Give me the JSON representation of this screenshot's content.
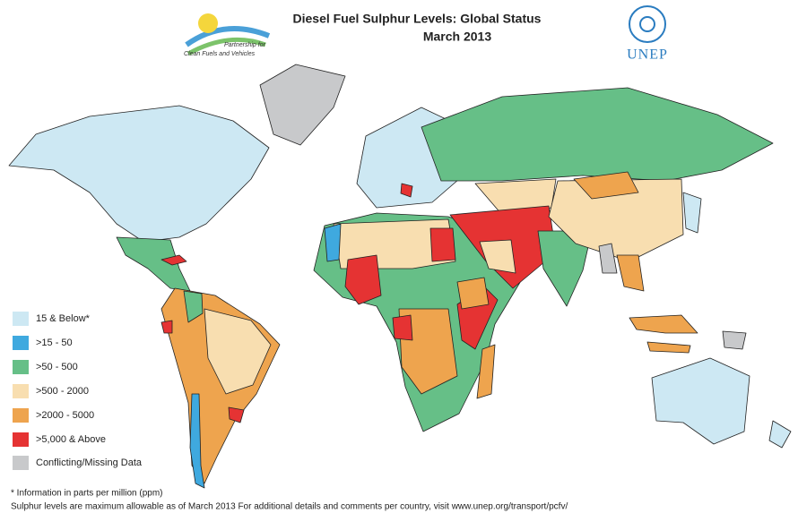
{
  "header": {
    "title": "Diesel Fuel Sulphur Levels: Global Status",
    "subtitle": "March 2013",
    "partner_logo": [
      "Partnership for",
      "Clean Fuels and Vehicles"
    ],
    "agency_logo": "UNEP"
  },
  "legend": [
    {
      "label": "15 & Below*",
      "color": "#cde8f3"
    },
    {
      "label": ">15 - 50",
      "color": "#3fa9df"
    },
    {
      "label": ">50 - 500",
      "color": "#66bf87"
    },
    {
      "label": ">500 - 2000",
      "color": "#f8deb0"
    },
    {
      "label": ">2000 - 5000",
      "color": "#eea44e"
    },
    {
      "label": ">5,000 & Above",
      "color": "#e53333"
    },
    {
      "label": "Conflicting/Missing Data",
      "color": "#c8c9cb"
    }
  ],
  "footnotes": [
    "* Information in parts per million (ppm)",
    "Sulphur levels are maximum allowable as of  March 2013  For additional details and comments per country, visit www.unep.org/transport/pcfv/"
  ]
}
